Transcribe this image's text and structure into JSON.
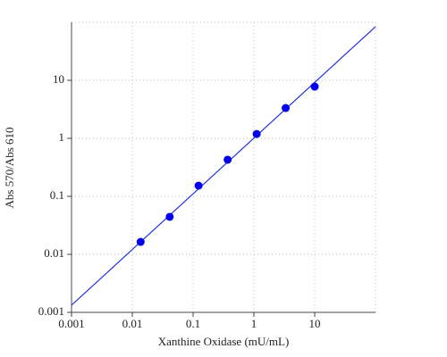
{
  "chart_data": {
    "type": "scatter",
    "x_label": "Xanthine Oxidase (mU/mL)",
    "y_label": "Abs 570/Abs 610",
    "xscale": "log",
    "yscale": "log",
    "xlim": [
      0.001,
      100
    ],
    "ylim": [
      0.001,
      100
    ],
    "xticks": [
      0.001,
      0.01,
      0.1,
      1,
      10
    ],
    "yticks": [
      0.001,
      0.01,
      0.1,
      1,
      10
    ],
    "grid": true,
    "series": [
      {
        "type": "scatter",
        "color": "#0000ee",
        "x": [
          0.0137,
          0.0412,
          0.123,
          0.37,
          1.11,
          3.33,
          10
        ],
        "values": [
          0.0164,
          0.0443,
          0.153,
          0.428,
          1.19,
          3.33,
          7.8
        ]
      },
      {
        "type": "line",
        "color": "#2233dd",
        "x": [
          0.001,
          100
        ],
        "values": [
          0.00133,
          84
        ]
      }
    ]
  }
}
